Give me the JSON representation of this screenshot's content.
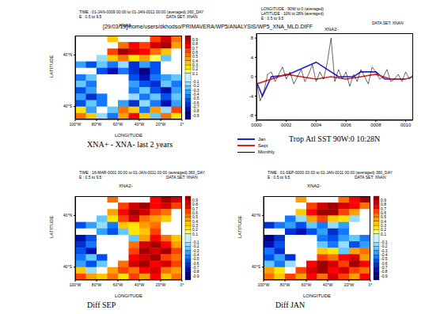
{
  "header": "[29/03/19]/home/users/dkhodso/PRIMAVERA/WP5/ANALYSIS/WP5_XNA_MLD.DIFF",
  "chart_data": [
    {
      "type": "heatmap",
      "title": "XNA2-",
      "annotations": [
        "TIME : 01-JAN-0009 00:00 to 01-JAN-0011 00:00 (averaged) 360_DAY",
        "E : 0.5 to 9.5",
        "DATA SET: XNAN"
      ],
      "caption": "XNA+ - XNA- last 2 years",
      "x_label": "LONGITUDE",
      "y_label": "LATITUDE",
      "x": [
        -95,
        -85,
        -75,
        -65,
        -55,
        -45,
        -35,
        -25,
        -15,
        -5
      ],
      "y": [
        65,
        55,
        45,
        35,
        25,
        15,
        5,
        -5,
        -15,
        -25,
        -35,
        -45,
        -55
      ],
      "xlim": [
        -100,
        0
      ],
      "xticks": [
        {
          "value": -100,
          "label": "100°W"
        },
        {
          "value": -80,
          "label": "80°W"
        },
        {
          "value": -60,
          "label": "60°W"
        },
        {
          "value": -40,
          "label": "40°W"
        },
        {
          "value": -20,
          "label": "20°W"
        },
        {
          "value": 0,
          "label": "0°"
        }
      ],
      "ylim": [
        -60,
        70
      ],
      "yticks": [
        {
          "value": -40,
          "label": "40°S"
        },
        {
          "value": 40,
          "label": "40°N"
        }
      ],
      "cells": [
        [
          null,
          null,
          null,
          0.3,
          null,
          null,
          null,
          0.6,
          0.8,
          0.5
        ],
        [
          null,
          null,
          null,
          null,
          0.5,
          0.7,
          0.6,
          0.8,
          0.9,
          0.4
        ],
        [
          null,
          null,
          null,
          0.6,
          0.9,
          0.8,
          0.7,
          0.5,
          0.3,
          null
        ],
        [
          null,
          null,
          -0.2,
          0.3,
          0.5,
          0.2,
          0.4,
          0.1,
          -0.3,
          null
        ],
        [
          -0.4,
          -0.6,
          -0.3,
          -0.5,
          -0.2,
          -0.7,
          -0.4,
          -0.6,
          null,
          null
        ],
        [
          null,
          null,
          -0.6,
          -0.8,
          -0.5,
          -0.7,
          -0.9,
          -0.6,
          null,
          null
        ],
        [
          -0.5,
          -0.3,
          null,
          null,
          null,
          -0.6,
          -0.8,
          -0.5,
          -0.4,
          -0.3
        ],
        [
          -0.3,
          -0.5,
          null,
          null,
          null,
          -0.4,
          -0.6,
          -0.7,
          -0.3,
          -0.5
        ],
        [
          -0.6,
          -0.4,
          null,
          null,
          null,
          -0.5,
          -0.3,
          -0.6,
          -0.8,
          -0.4
        ],
        [
          -0.4,
          -0.7,
          -0.5,
          null,
          null,
          -0.2,
          -0.5,
          -0.3,
          -0.6,
          -0.3
        ],
        [
          -0.6,
          -0.3,
          -0.5,
          null,
          -0.4,
          -0.7,
          -0.2,
          -0.5,
          -0.8,
          -0.4
        ],
        [
          0.2,
          -0.4,
          null,
          -0.3,
          0.5,
          0.3,
          -0.5,
          0.4,
          -0.2,
          0.6
        ],
        [
          0.5,
          0.3,
          -0.2,
          -0.5,
          0.4,
          0.7,
          0.3,
          -0.3,
          0.5,
          0.2
        ]
      ],
      "colorbar": {
        "range": [
          -1,
          1
        ],
        "ticks": [
          0.9,
          0.8,
          0.7,
          0.6,
          0.5,
          0.4,
          0.3,
          0.2,
          0.1,
          -0.1,
          -0.2,
          -0.3,
          -0.4,
          -0.5,
          -0.6,
          -0.7,
          -0.8,
          -0.9
        ]
      }
    },
    {
      "type": "line",
      "title": "XNA2-",
      "annotations": [
        "LONGITUDE : 90W to 0 (averaged)",
        "LATITUDE : 10N to 28N (averaged)",
        "E : 0.5 to 9.5",
        "DATA SET: XNAN"
      ],
      "caption": "Trop Atl SST 90W:0 10:28N",
      "xlim": [
        0,
        10.5
      ],
      "xticks": [
        {
          "value": 0,
          "label": "0000"
        },
        {
          "value": 2,
          "label": "0002"
        },
        {
          "value": 4,
          "label": "0004"
        },
        {
          "value": 6,
          "label": "0006"
        },
        {
          "value": 8,
          "label": "0008"
        },
        {
          "value": 10,
          "label": "0010"
        }
      ],
      "ylim": [
        -9,
        9
      ],
      "yticks": [
        -8,
        -4,
        0,
        4,
        8
      ],
      "series": [
        {
          "name": "Jan",
          "color": "#2020e0",
          "x": [
            0,
            0.4,
            1,
            2,
            4,
            5.5,
            6.5,
            7,
            8,
            8.6,
            9,
            10
          ],
          "values": [
            -1,
            -4,
            0,
            0.3,
            3,
            0,
            0,
            1,
            1,
            -0.5,
            -0.5,
            -0.5
          ]
        },
        {
          "name": "Sept",
          "color": "#e02020",
          "x": [
            0,
            1,
            2,
            3,
            4,
            5,
            6,
            7,
            8,
            9,
            10,
            10.5
          ],
          "values": [
            -1.5,
            -0.5,
            0.5,
            0,
            -0.5,
            0,
            -0.5,
            0,
            0.5,
            -0.5,
            -0.5,
            0
          ]
        },
        {
          "name": "Monthly",
          "color": "#000000",
          "x": [
            0,
            0.25,
            0.5,
            0.75,
            1,
            1.25,
            1.5,
            1.75,
            2,
            2.25,
            2.5,
            2.75,
            3,
            3.25,
            3.5,
            3.75,
            4,
            4.25,
            4.5,
            4.75,
            5,
            5.25,
            5.5,
            5.75,
            6,
            6.25,
            6.5,
            6.75,
            7,
            7.25,
            7.5,
            7.75,
            8,
            8.25,
            8.5,
            8.75,
            9,
            9.25,
            9.5,
            9.75,
            10,
            10.25,
            10.5
          ],
          "values": [
            -1,
            -5,
            -3,
            0.5,
            1,
            -1,
            0.5,
            2,
            -0.5,
            1,
            -1.5,
            0,
            1.5,
            -1,
            0.5,
            2.5,
            -1,
            1,
            -0.5,
            3,
            8,
            -1,
            1.5,
            -0.5,
            1,
            -2,
            0.5,
            -1,
            1.5,
            0,
            -1.5,
            2,
            1,
            -0.5,
            0,
            1.5,
            -1,
            -0.5,
            0.5,
            -1,
            1,
            -0.5,
            0.5
          ]
        }
      ]
    },
    {
      "type": "heatmap",
      "title": "XNA2-",
      "annotations": [
        "TIME : 16-MAR-0001 00:00 to 01-JAN-0011 00:00 (averaged) 360_DAY",
        "E : 0.5 to 9.5",
        "DATA SET: XNAN"
      ],
      "caption": "Diff SEP",
      "x_label": "LONGITUDE",
      "y_label": "LATITUDE",
      "x": [
        -95,
        -85,
        -75,
        -65,
        -55,
        -45,
        -35,
        -25,
        -15,
        -5
      ],
      "y": [
        65,
        55,
        45,
        35,
        25,
        15,
        5,
        -5,
        -15,
        -25,
        -35,
        -45,
        -55
      ],
      "xlim": [
        -100,
        0
      ],
      "xticks": [
        {
          "value": -100,
          "label": "100°W"
        },
        {
          "value": -80,
          "label": "80°W"
        },
        {
          "value": -60,
          "label": "60°W"
        },
        {
          "value": -40,
          "label": "40°W"
        },
        {
          "value": -20,
          "label": "20°W"
        },
        {
          "value": 0,
          "label": "0°"
        }
      ],
      "ylim": [
        -60,
        70
      ],
      "yticks": [
        {
          "value": -40,
          "label": "40°S"
        },
        {
          "value": 40,
          "label": "40°N"
        }
      ],
      "cells": [
        [
          null,
          null,
          null,
          0.5,
          null,
          null,
          null,
          0.7,
          0.9,
          0.8
        ],
        [
          null,
          null,
          null,
          null,
          0.6,
          0.8,
          0.9,
          0.7,
          0.8,
          0.6
        ],
        [
          null,
          null,
          null,
          0.4,
          0.7,
          0.9,
          0.8,
          0.6,
          0.5,
          null
        ],
        [
          null,
          null,
          -0.3,
          0.2,
          0.6,
          0.8,
          0.5,
          0.4,
          0.3,
          null
        ],
        [
          -0.6,
          -0.4,
          -0.2,
          -0.5,
          0.3,
          0.2,
          0.4,
          0.5,
          null,
          null
        ],
        [
          null,
          null,
          -0.4,
          -0.6,
          -0.3,
          0.2,
          0.3,
          0.6,
          null,
          null
        ],
        [
          -0.8,
          -0.6,
          null,
          null,
          null,
          -0.3,
          0.4,
          0.7,
          0.5,
          0.3
        ],
        [
          -0.7,
          -0.5,
          null,
          null,
          null,
          0.5,
          0.8,
          0.9,
          0.7,
          0.4
        ],
        [
          -0.6,
          -0.8,
          null,
          null,
          null,
          0.6,
          0.9,
          0.8,
          0.9,
          0.6
        ],
        [
          -0.5,
          -0.3,
          -0.6,
          null,
          null,
          0.7,
          0.8,
          0.9,
          0.6,
          0.5
        ],
        [
          -0.4,
          -0.6,
          -0.3,
          null,
          0.5,
          0.8,
          0.9,
          0.7,
          0.8,
          0.6
        ],
        [
          0.3,
          -0.2,
          null,
          0.4,
          0.6,
          0.5,
          0.7,
          0.8,
          0.5,
          0.4
        ],
        [
          0.6,
          0.4,
          0.3,
          0.5,
          0.2,
          0.6,
          0.4,
          0.7,
          0.3,
          0.5
        ]
      ],
      "colorbar": {
        "range": [
          -1,
          1
        ],
        "ticks": [
          0.9,
          0.8,
          0.7,
          0.6,
          0.5,
          0.4,
          0.3,
          0.2,
          0.1,
          -0.1,
          -0.2,
          -0.3,
          -0.4,
          -0.5,
          -0.6,
          -0.7,
          -0.8,
          -0.9
        ]
      }
    },
    {
      "type": "heatmap",
      "title": "XNA2-",
      "annotations": [
        "TIME : 01-SEP-0000 00:00 to 01-JAN-0011 00:00 (averaged) 360_DAY",
        "E : 0.5 to 9.5",
        "DATA SET: XNAN"
      ],
      "caption": "Diff JAN",
      "x_label": "LONGITUDE",
      "y_label": "LATITUDE",
      "x": [
        -95,
        -85,
        -75,
        -65,
        -55,
        -45,
        -35,
        -25,
        -15,
        -5
      ],
      "y": [
        65,
        55,
        45,
        35,
        25,
        15,
        5,
        -5,
        -15,
        -25,
        -35,
        -45,
        -55
      ],
      "xlim": [
        -100,
        0
      ],
      "xticks": [
        {
          "value": -100,
          "label": "100°W"
        },
        {
          "value": -80,
          "label": "80°W"
        },
        {
          "value": -60,
          "label": "60°W"
        },
        {
          "value": -40,
          "label": "40°W"
        },
        {
          "value": -20,
          "label": "20°W"
        },
        {
          "value": 0,
          "label": "0°"
        }
      ],
      "ylim": [
        -60,
        70
      ],
      "yticks": [
        {
          "value": -40,
          "label": "40°S"
        },
        {
          "value": 40,
          "label": "40°N"
        }
      ],
      "cells": [
        [
          null,
          null,
          null,
          0.4,
          null,
          null,
          null,
          0.5,
          0.7,
          0.9
        ],
        [
          null,
          null,
          null,
          null,
          0.6,
          0.8,
          0.9,
          0.8,
          0.7,
          0.5
        ],
        [
          null,
          null,
          null,
          0.3,
          0.7,
          0.9,
          0.9,
          0.6,
          0.4,
          null
        ],
        [
          null,
          null,
          -0.5,
          -0.2,
          0.4,
          0.6,
          0.3,
          0.2,
          -0.2,
          null
        ],
        [
          -0.7,
          -0.5,
          -0.4,
          -0.6,
          -0.3,
          -0.5,
          -0.2,
          -0.4,
          null,
          null
        ],
        [
          null,
          null,
          -0.7,
          -0.8,
          -0.6,
          -0.4,
          -0.7,
          -0.5,
          null,
          null
        ],
        [
          -0.9,
          -0.7,
          null,
          null,
          null,
          -0.5,
          -0.6,
          -0.4,
          -0.3,
          -0.5
        ],
        [
          -0.8,
          -0.6,
          null,
          null,
          null,
          -0.3,
          -0.5,
          -0.2,
          -0.6,
          -0.4
        ],
        [
          -0.5,
          -0.7,
          null,
          null,
          null,
          0.3,
          0.2,
          -0.3,
          0.4,
          0.5
        ],
        [
          -0.6,
          -0.4,
          -0.7,
          null,
          null,
          0.6,
          0.5,
          0.7,
          0.8,
          0.4
        ],
        [
          -0.3,
          -0.5,
          -0.2,
          null,
          0.7,
          0.9,
          0.8,
          0.6,
          0.9,
          0.7
        ],
        [
          0.4,
          0.2,
          null,
          0.6,
          0.8,
          0.9,
          0.7,
          0.8,
          0.6,
          0.5
        ],
        [
          0.5,
          0.3,
          0.6,
          0.4,
          0.7,
          0.5,
          0.8,
          0.6,
          0.4,
          0.7
        ]
      ],
      "colorbar": {
        "range": [
          -1,
          1
        ],
        "ticks": [
          0.9,
          0.8,
          0.7,
          0.6,
          0.5,
          0.4,
          0.3,
          0.2,
          0.1,
          -0.1,
          -0.2,
          -0.3,
          -0.4,
          -0.5,
          -0.6,
          -0.7,
          -0.8,
          -0.9
        ]
      }
    }
  ]
}
